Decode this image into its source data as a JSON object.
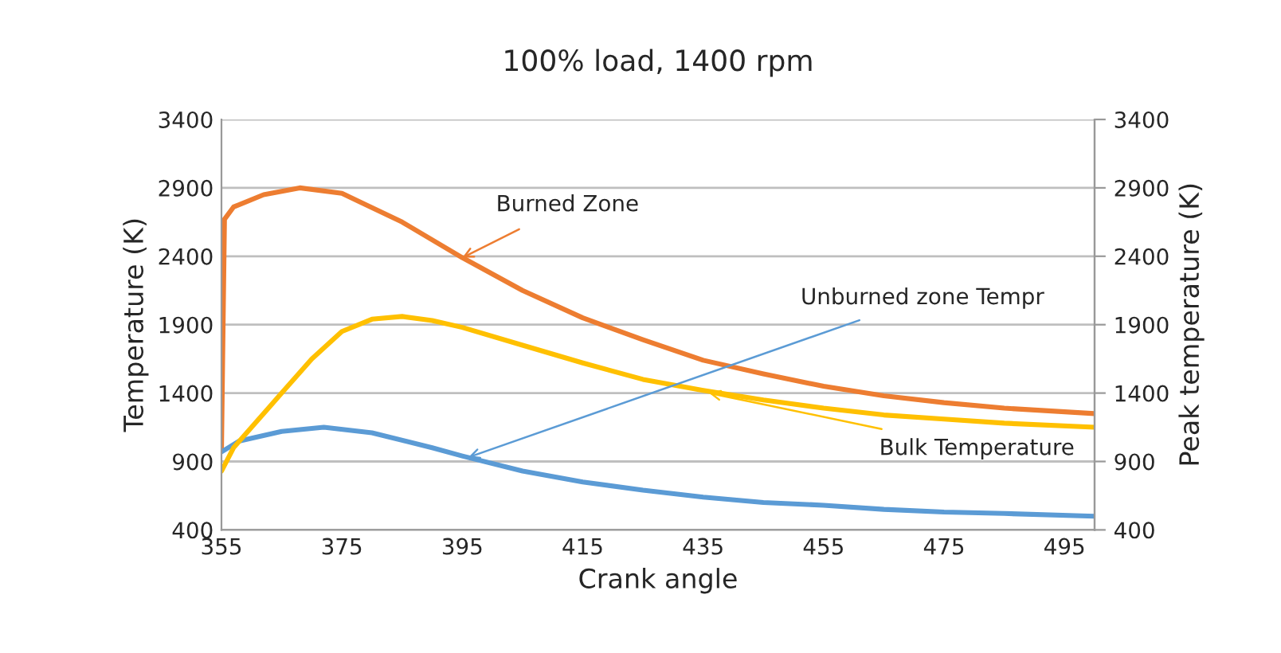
{
  "chart_data": {
    "type": "line",
    "title": "100% load, 1400 rpm",
    "xlabel": "Crank angle",
    "ylabel": "Temperature (K)",
    "y2label": "Peak temperature (K)",
    "xlim": [
      355,
      500
    ],
    "xticks": [
      355,
      375,
      395,
      415,
      435,
      455,
      475,
      495
    ],
    "ylim": [
      400,
      3400
    ],
    "yticks": [
      400,
      900,
      1400,
      1900,
      2400,
      2900,
      3400
    ],
    "y2lim": [
      400,
      3400
    ],
    "y2ticks": [
      400,
      900,
      1400,
      1900,
      2400,
      2900,
      3400
    ],
    "grid": "y",
    "legend": false,
    "marker": "none",
    "line_style": "solid",
    "series": [
      {
        "color": "#ed7d31",
        "x": [
          355,
          355.5,
          357,
          362,
          368,
          375,
          385,
          395,
          405,
          415,
          425,
          435,
          445,
          455,
          465,
          475,
          485,
          500
        ],
        "values": [
          980,
          2670,
          2760,
          2850,
          2900,
          2860,
          2650,
          2390,
          2150,
          1950,
          1790,
          1640,
          1540,
          1450,
          1380,
          1330,
          1290,
          1250
        ]
      },
      {
        "color": "#5b9bd5",
        "x": [
          355,
          358,
          365,
          372,
          380,
          390,
          395,
          405,
          415,
          425,
          435,
          445,
          455,
          465,
          475,
          485,
          500
        ],
        "values": [
          970,
          1050,
          1120,
          1150,
          1110,
          1000,
          940,
          830,
          750,
          690,
          640,
          600,
          580,
          550,
          530,
          520,
          500
        ]
      },
      {
        "color": "#ffc000",
        "x": [
          355,
          357,
          360,
          365,
          370,
          375,
          380,
          385,
          390,
          395,
          405,
          415,
          425,
          435,
          445,
          455,
          465,
          475,
          485,
          500
        ],
        "values": [
          830,
          1000,
          1150,
          1400,
          1650,
          1850,
          1940,
          1960,
          1930,
          1880,
          1750,
          1620,
          1500,
          1420,
          1350,
          1290,
          1240,
          1210,
          1180,
          1150
        ]
      }
    ],
    "annotations": [
      {
        "text": "Burned Zone",
        "x": 395,
        "y": 2390
      },
      {
        "text": "Unburned zone Tempr",
        "x": 396,
        "y": 930
      },
      {
        "text": "Bulk Temperature",
        "x": 436,
        "y": 1400
      }
    ]
  }
}
